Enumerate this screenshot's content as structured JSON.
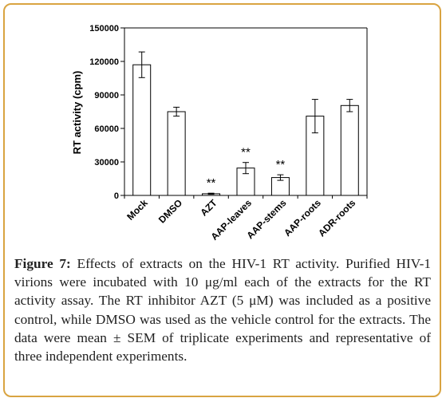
{
  "chart_data": {
    "type": "bar",
    "ylabel": "RT activity (cpm)",
    "ylim": [
      0,
      150000
    ],
    "yticks": [
      0,
      30000,
      60000,
      90000,
      120000,
      150000
    ],
    "ytick_labels": [
      "0",
      "30000",
      "60000",
      "90000",
      "120000",
      "150000"
    ],
    "categories": [
      "Mock",
      "DMSO",
      "AZT",
      "AAP-leaves",
      "AAP-stems",
      "AAP-roots",
      "ADR-roots"
    ],
    "values": [
      117000,
      75000,
      1500,
      24500,
      16000,
      71000,
      80500
    ],
    "errors": [
      11500,
      4000,
      500,
      5000,
      2500,
      15000,
      5500
    ],
    "annotations": [
      "",
      "",
      "**",
      "**",
      "**",
      "",
      ""
    ],
    "grid": false,
    "bar_fill": "#ffffff",
    "bar_stroke": "#000000"
  },
  "caption": {
    "label": "Figure 7:",
    "text": " Effects of extracts on the HIV-1 RT activity. Purified HIV-1 virions were incubated with 10 μg/ml each of the extracts for the RT activity assay. The RT inhibitor AZT (5 μM) was included as a positive control, while DMSO was used as the vehicle control for the extracts. The data were mean ± SEM of triplicate experiments and representative of three independent experiments."
  },
  "colors": {
    "frame_border": "#d9a441",
    "caption_text": "#222222"
  }
}
